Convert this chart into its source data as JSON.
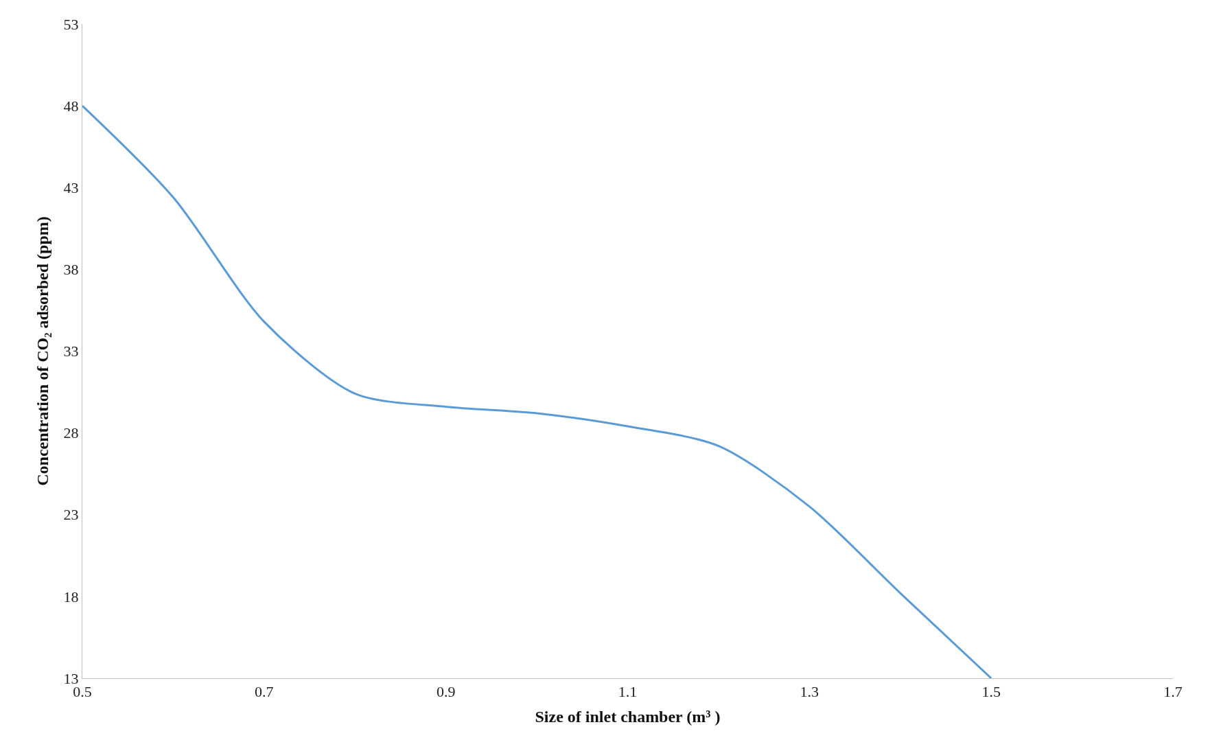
{
  "chart_data": {
    "type": "line",
    "xlabel": "Size of inlet chamber (m³ )",
    "ylabel": "Concentration of CO₂ adsorbed (ppm)",
    "x": [
      0.5,
      0.6,
      0.7,
      0.8,
      0.9,
      1.0,
      1.1,
      1.2,
      1.3,
      1.4,
      1.5
    ],
    "series": [
      {
        "color": "#5b9bd5",
        "values": [
          48,
          42.4,
          34.8,
          30.4,
          29.6,
          29.2,
          28.4,
          27.2,
          23.5,
          18.2,
          13
        ]
      }
    ],
    "xlim": [
      0.5,
      1.7
    ],
    "xticks": [
      0.5,
      0.7,
      0.9,
      1.1,
      1.3,
      1.5,
      1.7
    ],
    "ylim": [
      13,
      53
    ],
    "yticks": [
      13,
      18,
      23,
      28,
      33,
      38,
      43,
      48,
      53
    ],
    "marker": "none",
    "line_style": "solid"
  }
}
